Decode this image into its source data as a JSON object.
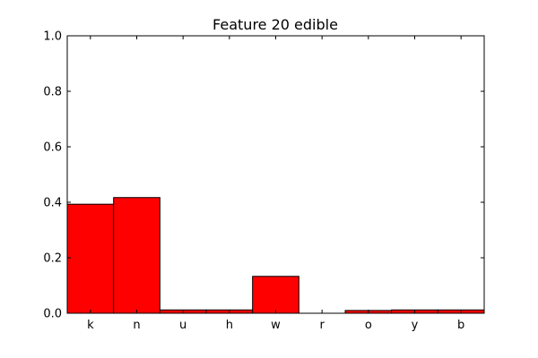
{
  "chart_data": {
    "type": "bar",
    "title": "Feature 20 edible",
    "xlabel": "",
    "ylabel": "",
    "categories": [
      "k",
      "n",
      "u",
      "h",
      "w",
      "r",
      "o",
      "y",
      "b"
    ],
    "values": [
      0.393,
      0.417,
      0.012,
      0.012,
      0.133,
      0.0,
      0.01,
      0.012,
      0.012
    ],
    "ylim": [
      0,
      1.0
    ],
    "yticks": [
      "0.0",
      "0.2",
      "0.4",
      "0.6",
      "0.8",
      "1.0"
    ],
    "grid": false,
    "bar_color": "#ff0000"
  }
}
